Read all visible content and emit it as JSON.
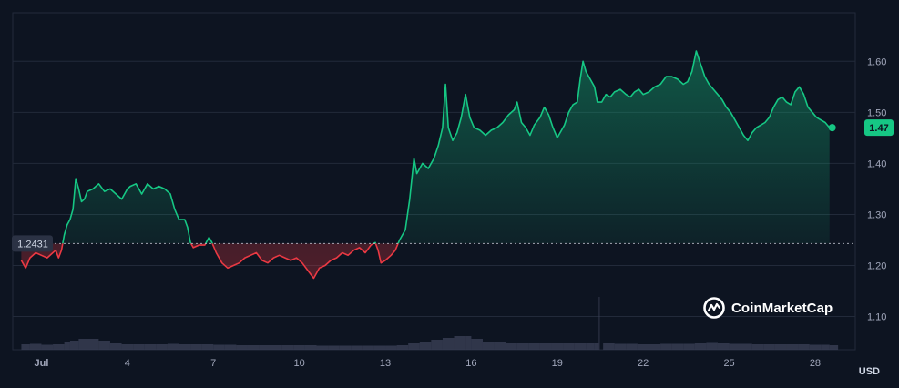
{
  "watermark": {
    "brand": "CoinMarketCap",
    "icon": "coinmarketcap-logo-icon"
  },
  "currency": "USD",
  "colors": {
    "background": "#0d1421",
    "up": "#16c784",
    "down": "#ea3943",
    "grid": "#222a3a",
    "volume": "#3c4258"
  },
  "chart_data": {
    "type": "line",
    "title": "",
    "xlabel": "",
    "ylabel": "",
    "x_range": [
      0,
      29.4
    ],
    "ylim": [
      1.035,
      1.695
    ],
    "x_ticks": [
      {
        "x": 1,
        "label": "Jul"
      },
      {
        "x": 4,
        "label": "4"
      },
      {
        "x": 7,
        "label": "7"
      },
      {
        "x": 10,
        "label": "10"
      },
      {
        "x": 13,
        "label": "13"
      },
      {
        "x": 16,
        "label": "16"
      },
      {
        "x": 19,
        "label": "19"
      },
      {
        "x": 22,
        "label": "22"
      },
      {
        "x": 25,
        "label": "25"
      },
      {
        "x": 28,
        "label": "28"
      }
    ],
    "y_ticks": [
      1.1,
      1.2,
      1.3,
      1.4,
      1.5,
      1.6
    ],
    "y_tick_labels": [
      "1.10",
      "1.20",
      "1.30",
      "1.40",
      "1.50",
      "1.60"
    ],
    "baseline": 1.2431,
    "baseline_label": "1.2431",
    "current_price": 1.47,
    "current_price_label": "1.47",
    "grid": true,
    "series": [
      {
        "points": [
          [
            0.3,
            1.21
          ],
          [
            0.45,
            1.195
          ],
          [
            0.6,
            1.215
          ],
          [
            0.8,
            1.225
          ],
          [
            1.0,
            1.22
          ],
          [
            1.2,
            1.215
          ],
          [
            1.4,
            1.225
          ],
          [
            1.5,
            1.23
          ],
          [
            1.6,
            1.215
          ],
          [
            1.7,
            1.23
          ],
          [
            1.8,
            1.26
          ],
          [
            1.9,
            1.28
          ],
          [
            2.0,
            1.29
          ],
          [
            2.1,
            1.31
          ],
          [
            2.2,
            1.37
          ],
          [
            2.3,
            1.35
          ],
          [
            2.4,
            1.325
          ],
          [
            2.5,
            1.33
          ],
          [
            2.6,
            1.345
          ],
          [
            2.8,
            1.35
          ],
          [
            3.0,
            1.36
          ],
          [
            3.2,
            1.345
          ],
          [
            3.4,
            1.35
          ],
          [
            3.6,
            1.34
          ],
          [
            3.8,
            1.33
          ],
          [
            4.0,
            1.35
          ],
          [
            4.1,
            1.355
          ],
          [
            4.3,
            1.36
          ],
          [
            4.5,
            1.34
          ],
          [
            4.7,
            1.36
          ],
          [
            4.9,
            1.35
          ],
          [
            5.1,
            1.355
          ],
          [
            5.3,
            1.35
          ],
          [
            5.5,
            1.34
          ],
          [
            5.65,
            1.31
          ],
          [
            5.8,
            1.29
          ],
          [
            6.0,
            1.29
          ],
          [
            6.1,
            1.275
          ],
          [
            6.2,
            1.245
          ],
          [
            6.3,
            1.235
          ],
          [
            6.5,
            1.24
          ],
          [
            6.7,
            1.24
          ],
          [
            6.85,
            1.255
          ],
          [
            6.95,
            1.245
          ],
          [
            7.1,
            1.225
          ],
          [
            7.3,
            1.205
          ],
          [
            7.5,
            1.195
          ],
          [
            7.7,
            1.2
          ],
          [
            7.9,
            1.205
          ],
          [
            8.1,
            1.215
          ],
          [
            8.3,
            1.22
          ],
          [
            8.5,
            1.225
          ],
          [
            8.7,
            1.21
          ],
          [
            8.9,
            1.205
          ],
          [
            9.1,
            1.215
          ],
          [
            9.3,
            1.22
          ],
          [
            9.5,
            1.215
          ],
          [
            9.7,
            1.21
          ],
          [
            9.9,
            1.215
          ],
          [
            10.1,
            1.205
          ],
          [
            10.3,
            1.19
          ],
          [
            10.5,
            1.175
          ],
          [
            10.7,
            1.195
          ],
          [
            10.9,
            1.2
          ],
          [
            11.1,
            1.21
          ],
          [
            11.3,
            1.215
          ],
          [
            11.5,
            1.225
          ],
          [
            11.7,
            1.22
          ],
          [
            11.9,
            1.23
          ],
          [
            12.1,
            1.235
          ],
          [
            12.3,
            1.225
          ],
          [
            12.5,
            1.24
          ],
          [
            12.65,
            1.245
          ],
          [
            12.75,
            1.23
          ],
          [
            12.85,
            1.205
          ],
          [
            13.0,
            1.21
          ],
          [
            13.2,
            1.22
          ],
          [
            13.35,
            1.23
          ],
          [
            13.5,
            1.25
          ],
          [
            13.7,
            1.27
          ],
          [
            13.85,
            1.33
          ],
          [
            14.0,
            1.41
          ],
          [
            14.1,
            1.38
          ],
          [
            14.3,
            1.4
          ],
          [
            14.5,
            1.39
          ],
          [
            14.7,
            1.41
          ],
          [
            14.85,
            1.435
          ],
          [
            15.0,
            1.47
          ],
          [
            15.1,
            1.555
          ],
          [
            15.2,
            1.47
          ],
          [
            15.35,
            1.445
          ],
          [
            15.5,
            1.46
          ],
          [
            15.65,
            1.49
          ],
          [
            15.8,
            1.535
          ],
          [
            15.95,
            1.49
          ],
          [
            16.1,
            1.47
          ],
          [
            16.3,
            1.465
          ],
          [
            16.5,
            1.455
          ],
          [
            16.7,
            1.465
          ],
          [
            16.9,
            1.47
          ],
          [
            17.1,
            1.48
          ],
          [
            17.3,
            1.495
          ],
          [
            17.5,
            1.505
          ],
          [
            17.6,
            1.52
          ],
          [
            17.75,
            1.48
          ],
          [
            17.9,
            1.47
          ],
          [
            18.05,
            1.455
          ],
          [
            18.2,
            1.475
          ],
          [
            18.4,
            1.49
          ],
          [
            18.55,
            1.51
          ],
          [
            18.7,
            1.495
          ],
          [
            18.85,
            1.47
          ],
          [
            19.0,
            1.45
          ],
          [
            19.1,
            1.46
          ],
          [
            19.25,
            1.475
          ],
          [
            19.4,
            1.5
          ],
          [
            19.55,
            1.515
          ],
          [
            19.7,
            1.52
          ],
          [
            19.8,
            1.565
          ],
          [
            19.9,
            1.6
          ],
          [
            20.0,
            1.58
          ],
          [
            20.15,
            1.565
          ],
          [
            20.3,
            1.55
          ],
          [
            20.4,
            1.52
          ],
          [
            20.55,
            1.52
          ],
          [
            20.7,
            1.535
          ],
          [
            20.85,
            1.53
          ],
          [
            21.0,
            1.54
          ],
          [
            21.2,
            1.545
          ],
          [
            21.4,
            1.535
          ],
          [
            21.55,
            1.53
          ],
          [
            21.7,
            1.54
          ],
          [
            21.85,
            1.545
          ],
          [
            22.0,
            1.535
          ],
          [
            22.2,
            1.54
          ],
          [
            22.4,
            1.55
          ],
          [
            22.6,
            1.555
          ],
          [
            22.8,
            1.57
          ],
          [
            23.0,
            1.57
          ],
          [
            23.2,
            1.565
          ],
          [
            23.4,
            1.555
          ],
          [
            23.55,
            1.56
          ],
          [
            23.7,
            1.58
          ],
          [
            23.85,
            1.62
          ],
          [
            24.0,
            1.595
          ],
          [
            24.15,
            1.57
          ],
          [
            24.3,
            1.555
          ],
          [
            24.45,
            1.545
          ],
          [
            24.6,
            1.535
          ],
          [
            24.75,
            1.525
          ],
          [
            24.9,
            1.51
          ],
          [
            25.05,
            1.5
          ],
          [
            25.2,
            1.485
          ],
          [
            25.35,
            1.47
          ],
          [
            25.5,
            1.455
          ],
          [
            25.65,
            1.445
          ],
          [
            25.8,
            1.46
          ],
          [
            25.95,
            1.47
          ],
          [
            26.1,
            1.475
          ],
          [
            26.25,
            1.48
          ],
          [
            26.4,
            1.49
          ],
          [
            26.55,
            1.51
          ],
          [
            26.7,
            1.525
          ],
          [
            26.85,
            1.53
          ],
          [
            27.0,
            1.52
          ],
          [
            27.15,
            1.515
          ],
          [
            27.3,
            1.54
          ],
          [
            27.45,
            1.55
          ],
          [
            27.6,
            1.535
          ],
          [
            27.75,
            1.51
          ],
          [
            27.9,
            1.5
          ],
          [
            28.05,
            1.49
          ],
          [
            28.2,
            1.485
          ],
          [
            28.35,
            1.48
          ],
          [
            28.5,
            1.47
          ]
        ]
      }
    ],
    "volume": [
      [
        0.3,
        6
      ],
      [
        0.6,
        6.5
      ],
      [
        1.0,
        5.5
      ],
      [
        1.4,
        6
      ],
      [
        1.8,
        8
      ],
      [
        2.0,
        10
      ],
      [
        2.3,
        12
      ],
      [
        2.6,
        12
      ],
      [
        3.0,
        10
      ],
      [
        3.4,
        7
      ],
      [
        3.8,
        6
      ],
      [
        4.2,
        6
      ],
      [
        4.6,
        6
      ],
      [
        5.0,
        6
      ],
      [
        5.4,
        6.5
      ],
      [
        5.8,
        6
      ],
      [
        6.2,
        6
      ],
      [
        6.6,
        6
      ],
      [
        7.0,
        5.5
      ],
      [
        7.4,
        5.5
      ],
      [
        7.8,
        5
      ],
      [
        8.2,
        5
      ],
      [
        8.6,
        5
      ],
      [
        9.0,
        5
      ],
      [
        9.4,
        5
      ],
      [
        9.8,
        5
      ],
      [
        10.2,
        5
      ],
      [
        10.6,
        4.5
      ],
      [
        11.0,
        4.5
      ],
      [
        11.4,
        4.5
      ],
      [
        11.8,
        4.5
      ],
      [
        12.2,
        4.5
      ],
      [
        12.6,
        4.5
      ],
      [
        13.0,
        4.5
      ],
      [
        13.4,
        5
      ],
      [
        13.8,
        7
      ],
      [
        14.2,
        9
      ],
      [
        14.6,
        11
      ],
      [
        15.0,
        13
      ],
      [
        15.4,
        15
      ],
      [
        15.8,
        15
      ],
      [
        16.0,
        12
      ],
      [
        16.4,
        9
      ],
      [
        16.8,
        8
      ],
      [
        17.2,
        7
      ],
      [
        17.6,
        7
      ],
      [
        18.0,
        7
      ],
      [
        18.4,
        7
      ],
      [
        18.8,
        7
      ],
      [
        19.2,
        7
      ],
      [
        19.6,
        7
      ],
      [
        20.0,
        7
      ],
      [
        20.3,
        7
      ],
      [
        20.45,
        58
      ],
      [
        20.6,
        7
      ],
      [
        21.0,
        6.5
      ],
      [
        21.4,
        6.5
      ],
      [
        21.8,
        6
      ],
      [
        22.2,
        6
      ],
      [
        22.6,
        6.5
      ],
      [
        23.0,
        6.5
      ],
      [
        23.4,
        6.5
      ],
      [
        23.8,
        7
      ],
      [
        24.2,
        7.5
      ],
      [
        24.6,
        7
      ],
      [
        25.0,
        6.5
      ],
      [
        25.4,
        6.5
      ],
      [
        25.8,
        6
      ],
      [
        26.2,
        6
      ],
      [
        26.6,
        6
      ],
      [
        27.0,
        6
      ],
      [
        27.4,
        6
      ],
      [
        27.8,
        5.5
      ],
      [
        28.2,
        5.5
      ],
      [
        28.5,
        5
      ]
    ]
  }
}
